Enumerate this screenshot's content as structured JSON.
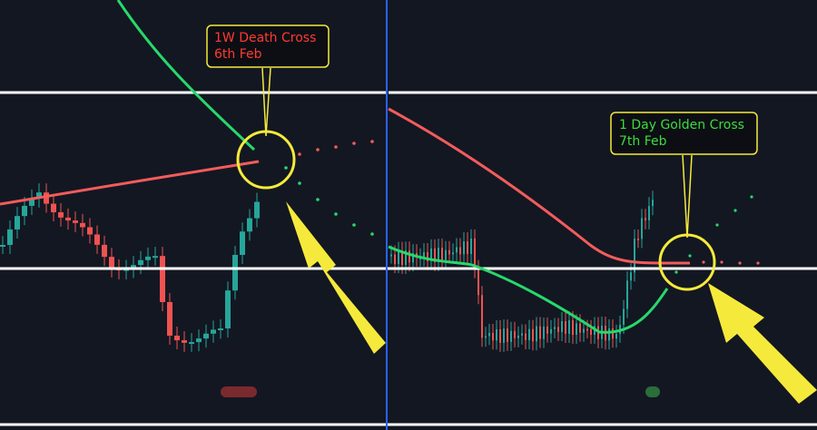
{
  "annotations": [
    {
      "title": "1W Death Cross",
      "date": "6th Feb",
      "color": "#ff3b30"
    },
    {
      "title": "1 Day Golden Cross",
      "date": "7th Feb",
      "color": "#3ddc3d"
    }
  ]
}
